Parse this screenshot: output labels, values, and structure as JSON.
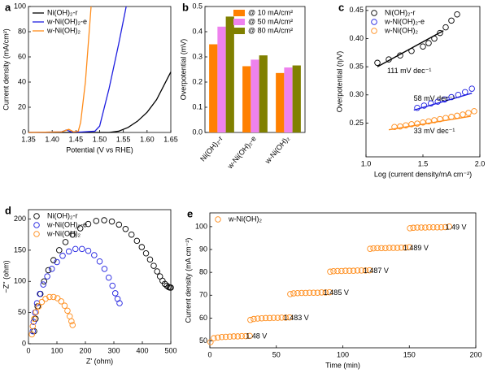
{
  "chart_data": [
    {
      "type": "line",
      "label": "a",
      "xlabel": "Potential (V vs RHE)",
      "ylabel": "Current density (mA/cm²)",
      "xlim": [
        1.35,
        1.65
      ],
      "ylim": [
        0,
        100
      ],
      "xticks": [
        1.35,
        {
          "value": 1.4,
          "label": "1.40"
        },
        1.45,
        {
          "value": 1.5,
          "label": "1.50"
        },
        1.55,
        {
          "value": 1.6,
          "label": "1.60"
        },
        1.65
      ],
      "yticks": [
        0,
        20,
        40,
        60,
        80,
        100
      ],
      "legend": "upper left",
      "series": [
        {
          "name": "Ni(OH)₂-r",
          "color": "#000000",
          "x": [
            1.35,
            1.52,
            1.54,
            1.56,
            1.58,
            1.6,
            1.62,
            1.65
          ],
          "values": [
            0,
            0,
            1,
            4,
            9,
            16,
            26,
            48
          ]
        },
        {
          "name": "w-Ni(OH)₂-e",
          "color": "#1f1fe0",
          "x": [
            1.35,
            1.42,
            1.43,
            1.44,
            1.46,
            1.49,
            1.5,
            1.52,
            1.54,
            1.556
          ],
          "values": [
            0,
            0.5,
            2,
            0.5,
            0.3,
            1,
            5,
            35,
            70,
            100
          ]
        },
        {
          "name": "w-Ni(OH)₂",
          "color": "#ff8c1a",
          "x": [
            1.35,
            1.42,
            1.435,
            1.445,
            1.455,
            1.46,
            1.47,
            1.476,
            1.482
          ],
          "values": [
            0,
            0.5,
            2.5,
            0.5,
            1,
            8,
            40,
            70,
            100
          ]
        }
      ]
    },
    {
      "type": "bar",
      "label": "b",
      "ylabel": "Overpotential (mV)",
      "categories": [
        "Ni(OH)₂-r",
        "w-Ni(OH)₂-e",
        "w-Ni(OH)₂"
      ],
      "ylim": [
        0,
        0.5
      ],
      "yticks": [
        {
          "value": 0,
          "label": "0.0"
        },
        0.1,
        0.2,
        0.3,
        0.4,
        0.5
      ],
      "legend": "upper right",
      "series": [
        {
          "name": "@ 10 mA/cm²",
          "color": "#ff8000",
          "values": [
            0.35,
            0.263,
            0.236
          ]
        },
        {
          "name": "@ 50 mA/cm²",
          "color": "#ee82ee",
          "values": [
            0.42,
            0.289,
            0.258
          ]
        },
        {
          "name": "@ 80 mA/cm²",
          "color": "#808000",
          "values": [
            0.46,
            0.306,
            0.266
          ]
        }
      ]
    },
    {
      "type": "scatter",
      "label": "c",
      "xlabel": "Log (current density/mA cm⁻²)",
      "ylabel": "Overpotential (η/V)",
      "xlim": [
        1.0,
        2.0
      ],
      "ylim": [
        0.19,
        0.457
      ],
      "xticks": [
        {
          "value": 1,
          "label": "1.0"
        },
        1.5,
        {
          "value": 2,
          "label": "2.0"
        }
      ],
      "yticks": [
        0.25,
        {
          "value": 0.3,
          "label": "0.30"
        },
        0.35,
        {
          "value": 0.4,
          "label": "0.40"
        },
        0.45
      ],
      "legend": "upper left",
      "series": [
        {
          "name": "Ni(OH)₂-r",
          "color": "#000000",
          "x": [
            1.1,
            1.2,
            1.3,
            1.4,
            1.5,
            1.55,
            1.6,
            1.65,
            1.7,
            1.75,
            1.8
          ],
          "values": [
            0.357,
            0.363,
            0.37,
            0.378,
            0.386,
            0.392,
            0.4,
            0.41,
            0.42,
            0.432,
            0.443
          ]
        },
        {
          "name": "w-Ni(OH)₂-e",
          "color": "#1f1fe0",
          "x": [
            1.45,
            1.51,
            1.57,
            1.63,
            1.69,
            1.75,
            1.81,
            1.87,
            1.93
          ],
          "values": [
            0.277,
            0.281,
            0.285,
            0.288,
            0.292,
            0.296,
            0.3,
            0.305,
            0.311
          ]
        },
        {
          "name": "w-Ni(OH)₂",
          "color": "#ff8c1a",
          "x": [
            1.25,
            1.3,
            1.35,
            1.4,
            1.45,
            1.5,
            1.55,
            1.6,
            1.65,
            1.7,
            1.75,
            1.8,
            1.85,
            1.9,
            1.95
          ],
          "values": [
            0.243,
            0.244,
            0.246,
            0.248,
            0.249,
            0.251,
            0.253,
            0.255,
            0.257,
            0.259,
            0.261,
            0.263,
            0.265,
            0.268,
            0.271
          ]
        }
      ],
      "fits": [
        {
          "color": "#000000",
          "x": [
            1.1,
            1.68
          ],
          "values": [
            0.35,
            0.414
          ]
        },
        {
          "color": "#1f1fe0",
          "x": [
            1.42,
            1.93
          ],
          "values": [
            0.273,
            0.303
          ]
        },
        {
          "color": "#ff8c1a",
          "x": [
            1.2,
            1.92
          ],
          "values": [
            0.238,
            0.262
          ]
        }
      ],
      "annotations": [
        {
          "text": "111 mV dec⁻¹",
          "x": 1.38,
          "y": 0.342,
          "color": "#000000"
        },
        {
          "text": "58 mV dec⁻¹",
          "x": 1.6,
          "y": 0.293,
          "color": "#1f1fe0"
        },
        {
          "text": "33 mV dec⁻¹",
          "x": 1.6,
          "y": 0.235,
          "color": "#ff8c1a"
        }
      ]
    },
    {
      "type": "scatter",
      "label": "d",
      "xlabel": "Z' (ohm)",
      "ylabel": "−Z'' (ohm)",
      "xlim": [
        0,
        500
      ],
      "ylim": [
        0,
        215
      ],
      "xticks": [
        0,
        100,
        200,
        300,
        400,
        500
      ],
      "yticks": [
        0,
        50,
        100,
        150,
        200
      ],
      "legend": "upper left",
      "series": [
        {
          "name": "Ni(OH)₂-r",
          "color": "#000000",
          "x": [
            20,
            25,
            32,
            42,
            55,
            70,
            88,
            108,
            130,
            155,
            182,
            210,
            238,
            266,
            293,
            318,
            341,
            362,
            381,
            398,
            413,
            427,
            440,
            452,
            462,
            471,
            479,
            486,
            492,
            497,
            500
          ],
          "values": [
            20,
            40,
            60,
            80,
            100,
            118,
            134,
            150,
            163,
            175,
            185,
            192,
            197,
            198,
            196,
            191,
            184,
            175,
            165,
            155,
            145,
            135,
            125,
            116,
            108,
            101,
            96,
            93,
            91,
            90,
            90
          ]
        },
        {
          "name": "w-Ni(OH)₂-e",
          "color": "#1f1fe0",
          "x": [
            15,
            18,
            23,
            30,
            40,
            52,
            66,
            82,
            100,
            120,
            142,
            165,
            188,
            210,
            231,
            250,
            267,
            282,
            295,
            305,
            313,
            320
          ],
          "values": [
            20,
            35,
            50,
            65,
            80,
            95,
            108,
            120,
            131,
            141,
            148,
            152,
            152,
            149,
            142,
            132,
            120,
            106,
            93,
            81,
            72,
            65
          ]
        },
        {
          "name": "w-Ni(OH)₂",
          "color": "#ff8c1a",
          "x": [
            12,
            15,
            20,
            27,
            36,
            47,
            60,
            74,
            88,
            102,
            115,
            127,
            137,
            145,
            151,
            155
          ],
          "values": [
            15,
            28,
            40,
            51,
            60,
            67,
            72,
            75,
            75,
            73,
            68,
            61,
            53,
            44,
            36,
            30
          ]
        }
      ]
    },
    {
      "type": "scatter",
      "label": "e",
      "xlabel": "Time (min)",
      "ylabel": "Current density (mA cm⁻²)",
      "xlim": [
        0,
        200
      ],
      "ylim": [
        47,
        106
      ],
      "xticks": [
        0,
        50,
        100,
        150,
        200
      ],
      "yticks": [
        50,
        60,
        70,
        80,
        90,
        100
      ],
      "legend": "upper left",
      "series": [
        {
          "name": "w-Ni(OH)₂",
          "color": "#ff8c1a",
          "x": [
            0.5,
            3,
            6,
            9,
            12,
            15,
            18,
            21,
            24,
            27,
            30,
            30.5,
            33,
            36,
            39,
            42,
            45,
            48,
            51,
            54,
            57,
            60,
            60.5,
            63,
            66,
            69,
            72,
            75,
            78,
            81,
            84,
            87,
            90,
            90.5,
            93,
            96,
            99,
            102,
            105,
            108,
            111,
            114,
            117,
            120,
            120.5,
            123,
            126,
            129,
            132,
            135,
            138,
            141,
            144,
            147,
            150,
            150.5,
            153,
            156,
            159,
            162,
            165,
            168,
            171,
            174,
            177,
            180
          ],
          "values": [
            49.5,
            51.2,
            51.5,
            51.7,
            51.8,
            51.9,
            52.0,
            52.0,
            52.1,
            52.1,
            52.2,
            59.2,
            59.6,
            59.8,
            59.9,
            60.0,
            60.0,
            60.1,
            60.1,
            60.2,
            60.2,
            60.3,
            70.5,
            70.8,
            70.9,
            71.0,
            71.0,
            71.1,
            71.1,
            71.1,
            71.2,
            71.2,
            71.3,
            80.3,
            80.5,
            80.6,
            80.6,
            80.7,
            80.7,
            80.7,
            80.8,
            80.8,
            80.8,
            80.9,
            90.3,
            90.5,
            90.6,
            90.6,
            90.6,
            90.7,
            90.7,
            90.7,
            90.8,
            90.8,
            91.0,
            99.3,
            99.5,
            99.6,
            99.6,
            99.6,
            99.7,
            99.7,
            99.7,
            99.7,
            99.8,
            100.0
          ]
        }
      ],
      "annotations": [
        {
          "text": "1.48 V",
          "x": 35,
          "y": 52,
          "color": "#9b30d9"
        },
        {
          "text": "1.483 V",
          "x": 65,
          "y": 60,
          "color": "#9b30d9"
        },
        {
          "text": "1.485 V",
          "x": 95,
          "y": 71,
          "color": "#9b30d9"
        },
        {
          "text": "1.487 V",
          "x": 125,
          "y": 80.5,
          "color": "#9b30d9"
        },
        {
          "text": "1.489 V",
          "x": 155,
          "y": 90.5,
          "color": "#9b30d9"
        },
        {
          "text": "1.49 V",
          "x": 185,
          "y": 99.5,
          "color": "#9b30d9"
        }
      ]
    }
  ]
}
